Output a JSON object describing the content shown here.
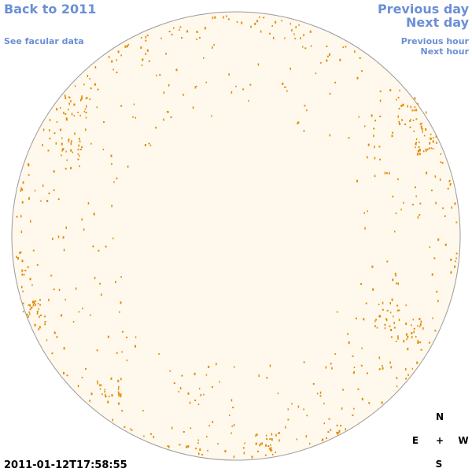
{
  "navigation": {
    "back": "Back to 2011",
    "previous_day": "Previous day",
    "next_day": "Next day",
    "facular_data": "See facular data",
    "previous_hour": "Previous hour",
    "next_hour": "Next hour"
  },
  "compass": {
    "north": "N",
    "east": "E",
    "center": "+",
    "west": "W",
    "south": "S"
  },
  "timestamp": "2011-01-12T17:58:55"
}
